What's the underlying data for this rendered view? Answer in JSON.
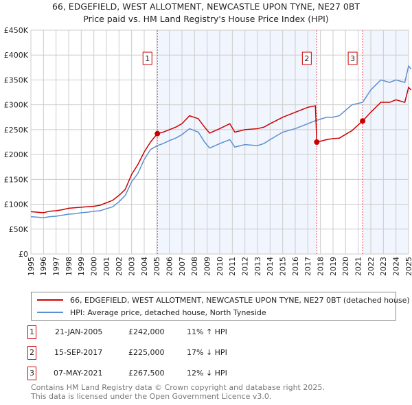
{
  "chart_data": {
    "type": "line",
    "title": "66, EDGEFIELD, WEST ALLOTMENT, NEWCASTLE UPON TYNE, NE27 0BT",
    "subtitle": "Price paid vs. HM Land Registry's House Price Index (HPI)",
    "xlim": [
      1995,
      2025
    ],
    "ylim": [
      0,
      450000
    ],
    "x_ticks": [
      "1995",
      "1996",
      "1997",
      "1998",
      "1999",
      "2000",
      "2001",
      "2002",
      "2003",
      "2004",
      "2005",
      "2006",
      "2007",
      "2008",
      "2009",
      "2010",
      "2011",
      "2012",
      "2013",
      "2014",
      "2015",
      "2016",
      "2017",
      "2018",
      "2019",
      "2020",
      "2021",
      "2022",
      "2023",
      "2024",
      "2025"
    ],
    "y_ticks": [
      {
        "v": 0,
        "label": "£0"
      },
      {
        "v": 50000,
        "label": "£50K"
      },
      {
        "v": 100000,
        "label": "£100K"
      },
      {
        "v": 150000,
        "label": "£150K"
      },
      {
        "v": 200000,
        "label": "£200K"
      },
      {
        "v": 250000,
        "label": "£250K"
      },
      {
        "v": 300000,
        "label": "£300K"
      },
      {
        "v": 350000,
        "label": "£350K"
      },
      {
        "v": 400000,
        "label": "£400K"
      },
      {
        "v": 450000,
        "label": "£450K"
      }
    ],
    "grid": true,
    "series": [
      {
        "name": "66, EDGEFIELD, WEST ALLOTMENT, NEWCASTLE UPON TYNE, NE27 0BT (detached house)",
        "color": "#cc0000",
        "x": [
          1995,
          1995.5,
          1996,
          1996.5,
          1997,
          1997.5,
          1998,
          1998.5,
          1999,
          1999.5,
          2000,
          2000.5,
          2001,
          2001.5,
          2002,
          2002.5,
          2003,
          2003.5,
          2004,
          2004.5,
          2005.05,
          2005.5,
          2006,
          2006.5,
          2007,
          2007.6,
          2008.3,
          2008.8,
          2009.2,
          2010,
          2010.8,
          2011.2,
          2012,
          2013,
          2013.5,
          2014,
          2015,
          2016,
          2016.5,
          2017,
          2017.6,
          2017.71,
          2018.5,
          2019,
          2019.5,
          2020.5,
          2021.35,
          2022,
          2022.8,
          2023.5,
          2024,
          2024.7,
          2025,
          2025.2
        ],
        "y": [
          85000,
          84000,
          83000,
          86000,
          87000,
          89000,
          92000,
          93000,
          94000,
          95000,
          96000,
          98000,
          103000,
          108000,
          118000,
          130000,
          160000,
          180000,
          205000,
          225000,
          242000,
          245000,
          250000,
          255000,
          262000,
          278000,
          272000,
          255000,
          243000,
          252000,
          262000,
          245000,
          250000,
          252000,
          255000,
          262000,
          275000,
          285000,
          290000,
          295000,
          298000,
          225000,
          230000,
          232000,
          233000,
          248000,
          267500,
          285000,
          305000,
          305000,
          310000,
          305000,
          335000,
          330000
        ]
      },
      {
        "name": "HPI: Average price, detached house, North Tyneside",
        "color": "#5b8fd0",
        "x": [
          1995,
          1995.5,
          1996,
          1996.5,
          1997,
          1997.5,
          1998,
          1998.5,
          1999,
          1999.5,
          2000,
          2000.5,
          2001,
          2001.5,
          2002,
          2002.5,
          2003,
          2003.5,
          2004,
          2004.5,
          2005.05,
          2005.5,
          2006,
          2006.5,
          2007,
          2007.6,
          2008.3,
          2008.8,
          2009.2,
          2010,
          2010.8,
          2011.2,
          2012,
          2013,
          2013.5,
          2014,
          2015,
          2016,
          2016.5,
          2017,
          2017.6,
          2018.5,
          2019,
          2019.5,
          2020.5,
          2021.35,
          2022,
          2022.8,
          2023.5,
          2024,
          2024.7,
          2025,
          2025.2
        ],
        "y": [
          75000,
          74000,
          73000,
          75000,
          76000,
          78000,
          80000,
          81000,
          83000,
          84000,
          86000,
          87000,
          91000,
          95000,
          105000,
          118000,
          145000,
          162000,
          190000,
          210000,
          218000,
          222000,
          228000,
          233000,
          240000,
          252000,
          245000,
          225000,
          213000,
          222000,
          230000,
          215000,
          220000,
          218000,
          222000,
          230000,
          245000,
          252000,
          257000,
          262000,
          268000,
          275000,
          275000,
          278000,
          300000,
          305000,
          330000,
          350000,
          345000,
          350000,
          345000,
          378000,
          372000
        ]
      }
    ],
    "sales": [
      {
        "n": "1",
        "x": 2005.05,
        "date": "21-JAN-2005",
        "price_value": 242000,
        "price": "£242,000",
        "hpi": "11% ↑ HPI"
      },
      {
        "n": "2",
        "x": 2017.71,
        "date": "15-SEP-2017",
        "price_value": 225000,
        "price": "£225,000",
        "hpi": "17% ↓ HPI"
      },
      {
        "n": "3",
        "x": 2021.35,
        "date": "07-MAY-2021",
        "price_value": 267500,
        "price": "£267,500",
        "hpi": "12% ↓ HPI"
      }
    ],
    "shaded_ranges": [
      [
        2005.05,
        2017.71
      ],
      [
        2021.35,
        2025
      ]
    ],
    "legend_position": "below"
  },
  "footer": {
    "line1": "Contains HM Land Registry data © Crown copyright and database right 2025.",
    "line2": "This data is licensed under the Open Government Licence v3.0."
  }
}
